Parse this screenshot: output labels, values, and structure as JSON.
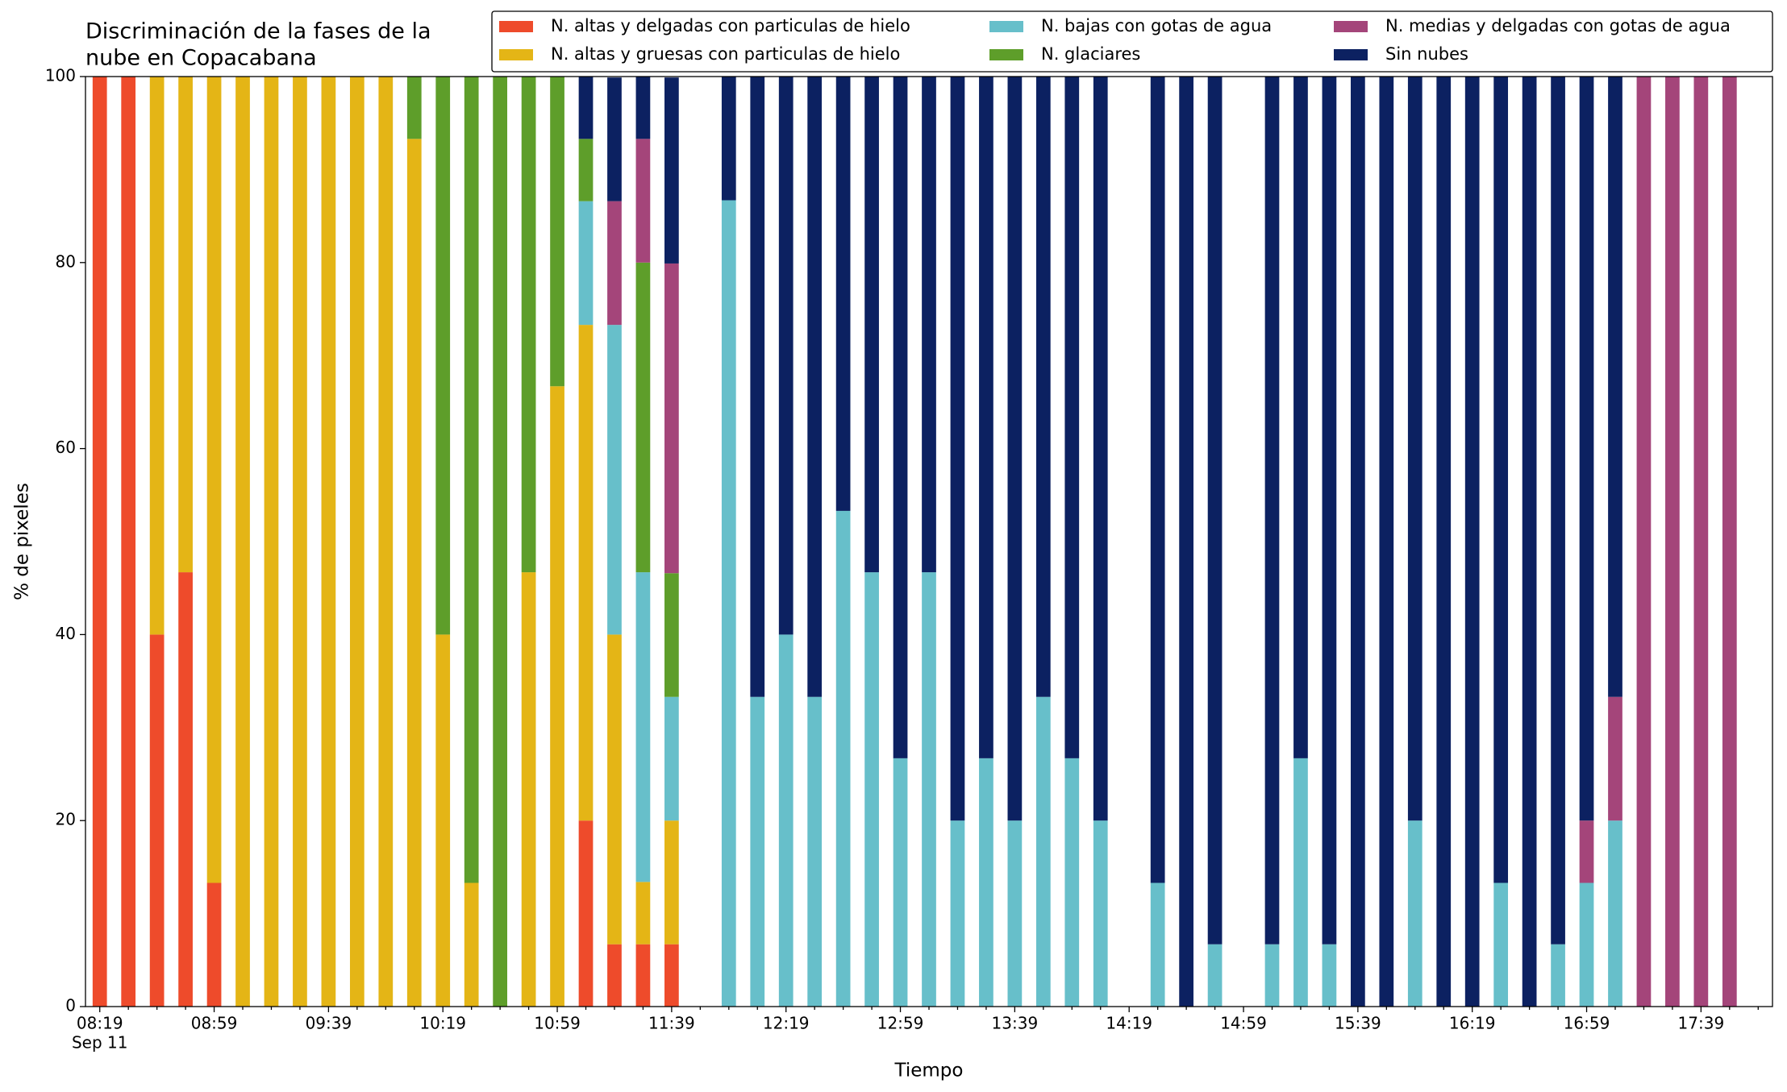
{
  "chart_data": {
    "type": "stacked_bar",
    "title": [
      "Discriminación de la fases de la",
      "nube en Copacabana"
    ],
    "xlabel": "Tiempo",
    "ylabel": "% de pixeles",
    "date_label": "Sep 11",
    "categories": [
      "08:19",
      null,
      null,
      null,
      "08:59",
      null,
      null,
      null,
      "09:39",
      null,
      null,
      null,
      "10:19",
      null,
      null,
      null,
      "10:59",
      null,
      null,
      null,
      "11:39",
      null,
      null,
      null,
      "12:19",
      null,
      null,
      null,
      "12:59",
      null,
      null,
      null,
      "13:39",
      null,
      null,
      null,
      "14:19",
      null,
      null,
      null,
      "14:59",
      null,
      null,
      null,
      "15:39",
      null,
      null,
      null,
      "16:19",
      null,
      null,
      null,
      "16:59",
      null,
      null,
      null,
      "17:39",
      null,
      null
    ],
    "ylim": [
      0,
      100
    ],
    "yticks": [
      0,
      20,
      40,
      60,
      80,
      100
    ],
    "legend": "upper right",
    "series": [
      {
        "name": "N. altas y delgadas con particulas de hielo",
        "color": "#ee4b2b",
        "values": [
          100,
          100,
          40,
          46.7,
          13.3,
          0,
          0,
          0,
          0,
          0,
          0,
          0,
          0,
          0,
          0,
          0,
          0,
          20,
          6.7,
          6.7,
          6.7,
          null,
          0,
          0,
          0,
          0,
          0,
          0,
          0,
          0,
          0,
          0,
          0,
          0,
          0,
          0,
          null,
          0,
          0,
          0,
          null,
          0,
          0,
          0,
          0,
          0,
          0,
          0,
          0,
          0,
          0,
          0,
          0,
          0,
          0,
          0,
          0,
          0,
          null
        ]
      },
      {
        "name": "N. altas y gruesas con particulas de hielo",
        "color": "#e4b516",
        "values": [
          0,
          0,
          60,
          53.3,
          86.7,
          100,
          100,
          100,
          100,
          100,
          100,
          93.3,
          40,
          13.3,
          0,
          46.7,
          66.7,
          53.3,
          33.3,
          6.7,
          13.3,
          null,
          0,
          0,
          0,
          0,
          0,
          0,
          0,
          0,
          0,
          0,
          0,
          0,
          0,
          0,
          null,
          0,
          0,
          0,
          null,
          0,
          0,
          0,
          0,
          0,
          0,
          0,
          0,
          0,
          0,
          0,
          0,
          0,
          0,
          0,
          0,
          0,
          null
        ]
      },
      {
        "name": "N. bajas con gotas de agua",
        "color": "#67bfca",
        "values": [
          0,
          0,
          0,
          0,
          0,
          0,
          0,
          0,
          0,
          0,
          0,
          0,
          0,
          0,
          0,
          0,
          0,
          13.3,
          33.3,
          33.3,
          13.3,
          null,
          86.7,
          33.3,
          40,
          33.3,
          53.3,
          46.7,
          26.7,
          46.7,
          20,
          26.7,
          20,
          33.3,
          26.7,
          20,
          null,
          13.3,
          0,
          6.7,
          null,
          6.7,
          26.7,
          6.7,
          0,
          0,
          20,
          0,
          0,
          13.3,
          0,
          6.7,
          13.3,
          20,
          0,
          0,
          0,
          0,
          null
        ]
      },
      {
        "name": "N. glaciares",
        "color": "#5e9e2a",
        "values": [
          0,
          0,
          0,
          0,
          0,
          0,
          0,
          0,
          0,
          0,
          0,
          6.7,
          60,
          86.7,
          100,
          53.3,
          33.3,
          6.7,
          0,
          33.3,
          13.3,
          null,
          0,
          0,
          0,
          0,
          0,
          0,
          0,
          0,
          0,
          0,
          0,
          0,
          0,
          0,
          null,
          0,
          0,
          0,
          null,
          0,
          0,
          0,
          0,
          0,
          0,
          0,
          0,
          0,
          0,
          0,
          0,
          0,
          0,
          0,
          0,
          0,
          null
        ]
      },
      {
        "name": "N. medias y delgadas con gotas de agua",
        "color": "#a4457a",
        "values": [
          0,
          0,
          0,
          0,
          0,
          0,
          0,
          0,
          0,
          0,
          0,
          0,
          0,
          0,
          0,
          0,
          0,
          0,
          13.3,
          13.3,
          33.3,
          null,
          0,
          0,
          0,
          0,
          0,
          0,
          0,
          0,
          0,
          0,
          0,
          0,
          0,
          0,
          null,
          0,
          0,
          0,
          null,
          0,
          0,
          0,
          0,
          0,
          0,
          0,
          0,
          0,
          0,
          0,
          6.7,
          13.3,
          100,
          100,
          100,
          100,
          null
        ]
      },
      {
        "name": "Sin nubes",
        "color": "#0c2161",
        "values": [
          0,
          0,
          0,
          0,
          0,
          0,
          0,
          0,
          0,
          0,
          0,
          0,
          0,
          0,
          0,
          0,
          0,
          6.7,
          13.3,
          6.7,
          20,
          null,
          13.3,
          66.7,
          60,
          66.7,
          46.7,
          53.3,
          73.3,
          53.3,
          80,
          73.3,
          80,
          66.7,
          73.3,
          80,
          null,
          86.7,
          100,
          93.3,
          null,
          93.3,
          73.3,
          93.3,
          100,
          100,
          80,
          100,
          100,
          86.7,
          100,
          93.3,
          80,
          66.7,
          0,
          0,
          0,
          0,
          null
        ]
      }
    ]
  }
}
